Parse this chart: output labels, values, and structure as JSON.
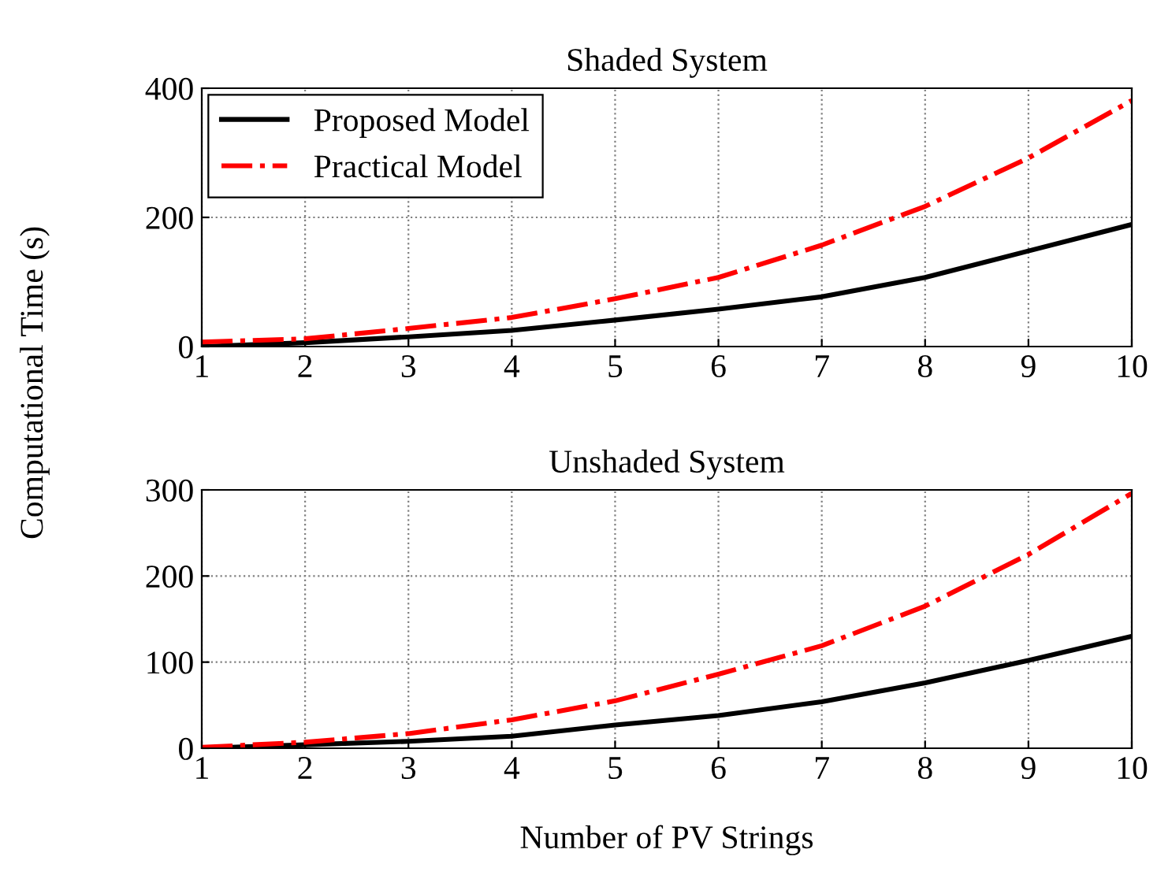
{
  "chart_data": [
    {
      "type": "line",
      "title": "Shaded System",
      "ylabel": "Computational Time (s)",
      "x": [
        1,
        2,
        3,
        4,
        5,
        6,
        7,
        8,
        9,
        10
      ],
      "xlim": [
        1,
        10
      ],
      "xticks": [
        1,
        2,
        3,
        4,
        5,
        6,
        7,
        8,
        9,
        10
      ],
      "ylim": [
        0,
        400
      ],
      "yticks": [
        0,
        200,
        400
      ],
      "grid": true,
      "legend": "top left",
      "series": [
        {
          "name": "Proposed Model",
          "color": "#000000",
          "line_style": "solid",
          "values": [
            0,
            6,
            15,
            25,
            41,
            58,
            77,
            107,
            148,
            189
          ]
        },
        {
          "name": "Practical Model",
          "color": "#ff0000",
          "line_style": "dashdot",
          "values": [
            7,
            12,
            28,
            45,
            74,
            107,
            157,
            217,
            292,
            381
          ]
        }
      ]
    },
    {
      "type": "line",
      "title": "Unshaded System",
      "xlabel": "Number of PV Strings",
      "x": [
        1,
        2,
        3,
        4,
        5,
        6,
        7,
        8,
        9,
        10
      ],
      "xlim": [
        1,
        10
      ],
      "xticks": [
        1,
        2,
        3,
        4,
        5,
        6,
        7,
        8,
        9,
        10
      ],
      "ylim": [
        0,
        300
      ],
      "yticks": [
        0,
        100,
        200,
        300
      ],
      "grid": true,
      "series": [
        {
          "color": "#000000",
          "line_style": "solid",
          "values": [
            0,
            4,
            8,
            14,
            27,
            38,
            54,
            76,
            102,
            130
          ]
        },
        {
          "color": "#ff0000",
          "line_style": "dashdot",
          "values": [
            1,
            7,
            17,
            33,
            55,
            86,
            119,
            165,
            225,
            296
          ]
        }
      ]
    }
  ]
}
